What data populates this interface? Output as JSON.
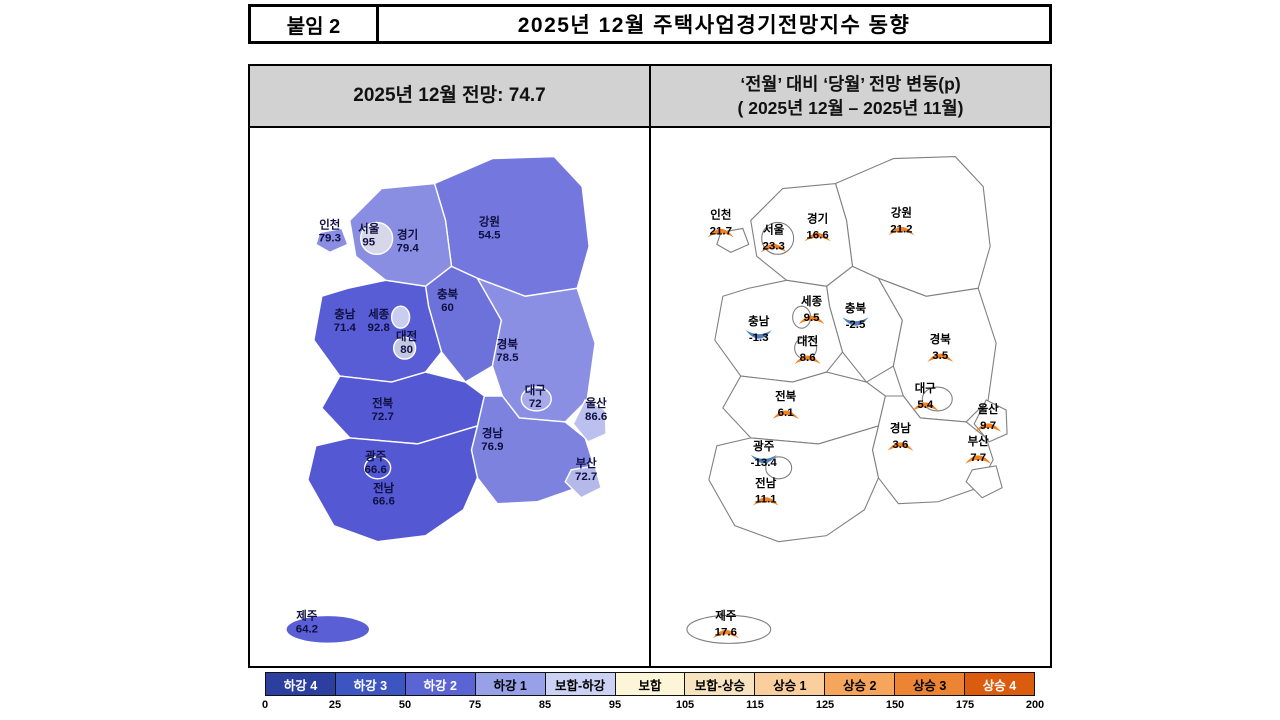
{
  "header": {
    "tag": "붙임 2",
    "title": "2025년 12월 주택사업경기전망지수 동향"
  },
  "panels": {
    "left_subtitle": "2025년 12월 전망: 74.7",
    "right_subtitle_line1": "‘전월’ 대비 ‘당월’ 전망 변동(p)",
    "right_subtitle_line2": "( 2025년 12월 –  2025년 11월)"
  },
  "chart_data": {
    "type": "heatmap",
    "title": "2025년 12월 주택사업경기전망지수 동향",
    "left_map_metric": "2025년 12월 전망 (전국 74.7)",
    "right_map_metric": "전월 대비 당월 전망 변동(p)",
    "regions": [
      {
        "id": "incheon",
        "name": "인천",
        "index": "79.3",
        "change": "21.7",
        "fill": "#8a8ee2"
      },
      {
        "id": "seoul",
        "name": "서울",
        "index": "95",
        "change": "23.3",
        "fill": "#d6d8ea"
      },
      {
        "id": "gyeonggi",
        "name": "경기",
        "index": "79.4",
        "change": "16.6",
        "fill": "#8a8ee2"
      },
      {
        "id": "gangwon",
        "name": "강원",
        "index": "54.5",
        "change": "21.2",
        "fill": "#7478de"
      },
      {
        "id": "chungbuk",
        "name": "충북",
        "index": "60",
        "change": "-2.5",
        "fill": "#6d71da"
      },
      {
        "id": "chungnam",
        "name": "충남",
        "index": "71.4",
        "change": "-1.3",
        "fill": "#585dd5"
      },
      {
        "id": "sejong",
        "name": "세종",
        "index": "92.8",
        "change": "9.5",
        "fill": "#c9cdf0"
      },
      {
        "id": "daejeon",
        "name": "대전",
        "index": "80",
        "change": "8.6",
        "fill": "#c5c8e2"
      },
      {
        "id": "gyeongbuk",
        "name": "경북",
        "index": "78.5",
        "change": "3.5",
        "fill": "#8b8fe4"
      },
      {
        "id": "daegu",
        "name": "대구",
        "index": "72",
        "change": "5.4",
        "fill": "#a6aae8"
      },
      {
        "id": "ulsan",
        "name": "울산",
        "index": "86.6",
        "change": "9.7",
        "fill": "#bcc0ee"
      },
      {
        "id": "jeonbuk",
        "name": "전북",
        "index": "72.7",
        "change": "6.1",
        "fill": "#5459d3"
      },
      {
        "id": "gyeongnam",
        "name": "경남",
        "index": "76.9",
        "change": "3.6",
        "fill": "#7d82df"
      },
      {
        "id": "gwangju",
        "name": "광주",
        "index": "66.6",
        "change": "-13.4",
        "fill": "#5158d2"
      },
      {
        "id": "jeonnam",
        "name": "전남",
        "index": "66.6",
        "change": "11.1",
        "fill": "#5459d3"
      },
      {
        "id": "busan",
        "name": "부산",
        "index": "72.7",
        "change": "7.7",
        "fill": "#b5b9ea"
      },
      {
        "id": "jeju",
        "name": "제주",
        "index": "64.2",
        "change": "17.6",
        "fill": "#5a5fd5"
      }
    ],
    "legend": {
      "bins": [
        {
          "label": "하강 4",
          "color": "#2c3f9e",
          "text": "#ffffff"
        },
        {
          "label": "하강 3",
          "color": "#3d55c0",
          "text": "#ffffff"
        },
        {
          "label": "하강 2",
          "color": "#5a65d3",
          "text": "#ffffff"
        },
        {
          "label": "하강 1",
          "color": "#98a0e8",
          "text": "#000000"
        },
        {
          "label": "보합-하강",
          "color": "#ccd2f4",
          "text": "#000000"
        },
        {
          "label": "보합",
          "color": "#fdf5d8",
          "text": "#000000"
        },
        {
          "label": "보합-상승",
          "color": "#f7e3c0",
          "text": "#000000"
        },
        {
          "label": "상승 1",
          "color": "#fbcf9d",
          "text": "#000000"
        },
        {
          "label": "상승 2",
          "color": "#f6a55c",
          "text": "#000000"
        },
        {
          "label": "상승 3",
          "color": "#ec8433",
          "text": "#000000"
        },
        {
          "label": "상승 4",
          "color": "#db5c0e",
          "text": "#ffffff"
        }
      ],
      "scale": [
        "0",
        "25",
        "50",
        "75",
        "85",
        "95",
        "105",
        "115",
        "125",
        "150",
        "175",
        "200"
      ]
    },
    "colors": {
      "up": "#f5821f",
      "down": "#4f7fbe",
      "map_border_left": "#ffffff",
      "map_border_right": "#808080"
    }
  }
}
